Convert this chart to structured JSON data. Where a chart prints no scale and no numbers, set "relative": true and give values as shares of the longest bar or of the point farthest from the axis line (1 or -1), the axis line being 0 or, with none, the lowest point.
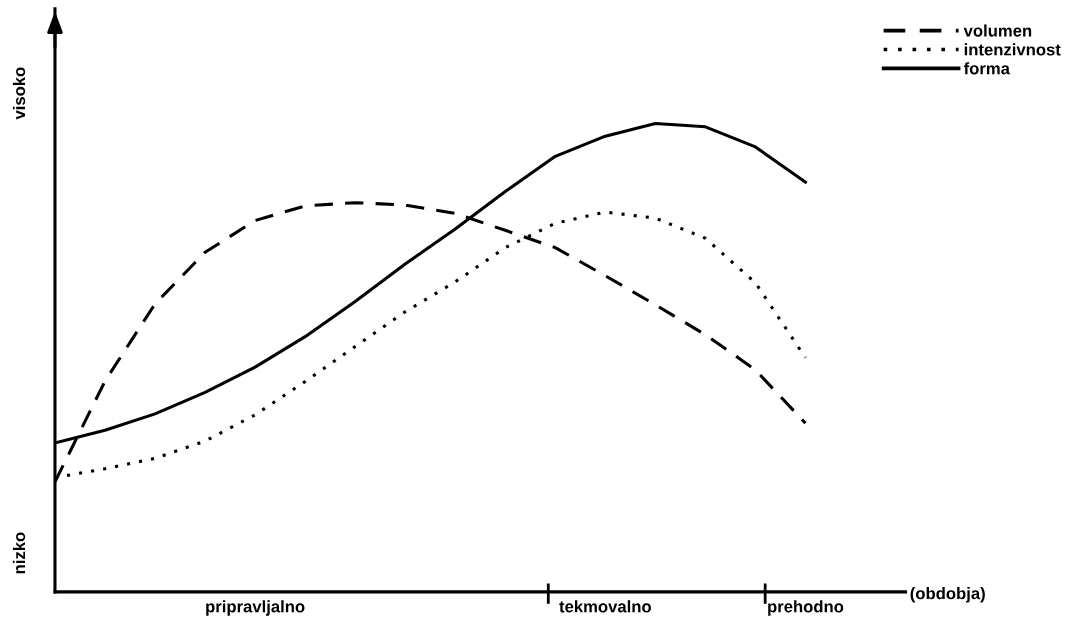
{
  "chart_data": {
    "type": "line",
    "relative": true,
    "xlabel": "(obdobja)",
    "categories": [
      null,
      null,
      null,
      null,
      "pripravljalno",
      null,
      null,
      null,
      null,
      null,
      null,
      "tekmovalno",
      null,
      null,
      null,
      "prehodno",
      null,
      null
    ],
    "annotations": [
      "nizko",
      "visoko"
    ],
    "legend": "top right",
    "series": [
      {
        "name": "volumen",
        "color": "#000000",
        "line_style": "dashed",
        "values": [
          0.235,
          0.45,
          0.615,
          0.725,
          0.793,
          0.824,
          0.831,
          0.826,
          0.808,
          0.772,
          0.735,
          0.675,
          0.613,
          0.549,
          0.474,
          0.36,
          null,
          null
        ]
      },
      {
        "name": "intenzivnost",
        "color": "#000000",
        "line_style": "dotted",
        "values": [
          0.244,
          0.263,
          0.285,
          0.322,
          0.378,
          0.449,
          0.524,
          0.598,
          0.662,
          0.735,
          0.787,
          0.811,
          0.798,
          0.755,
          0.66,
          0.5,
          null,
          null
        ]
      },
      {
        "name": "forma",
        "color": "#000000",
        "line_style": "solid",
        "values": [
          0.318,
          0.345,
          0.38,
          0.426,
          0.48,
          0.545,
          0.62,
          0.7,
          0.775,
          0.855,
          0.93,
          0.973,
          1,
          0.993,
          0.95,
          0.875,
          null,
          null
        ]
      }
    ]
  }
}
